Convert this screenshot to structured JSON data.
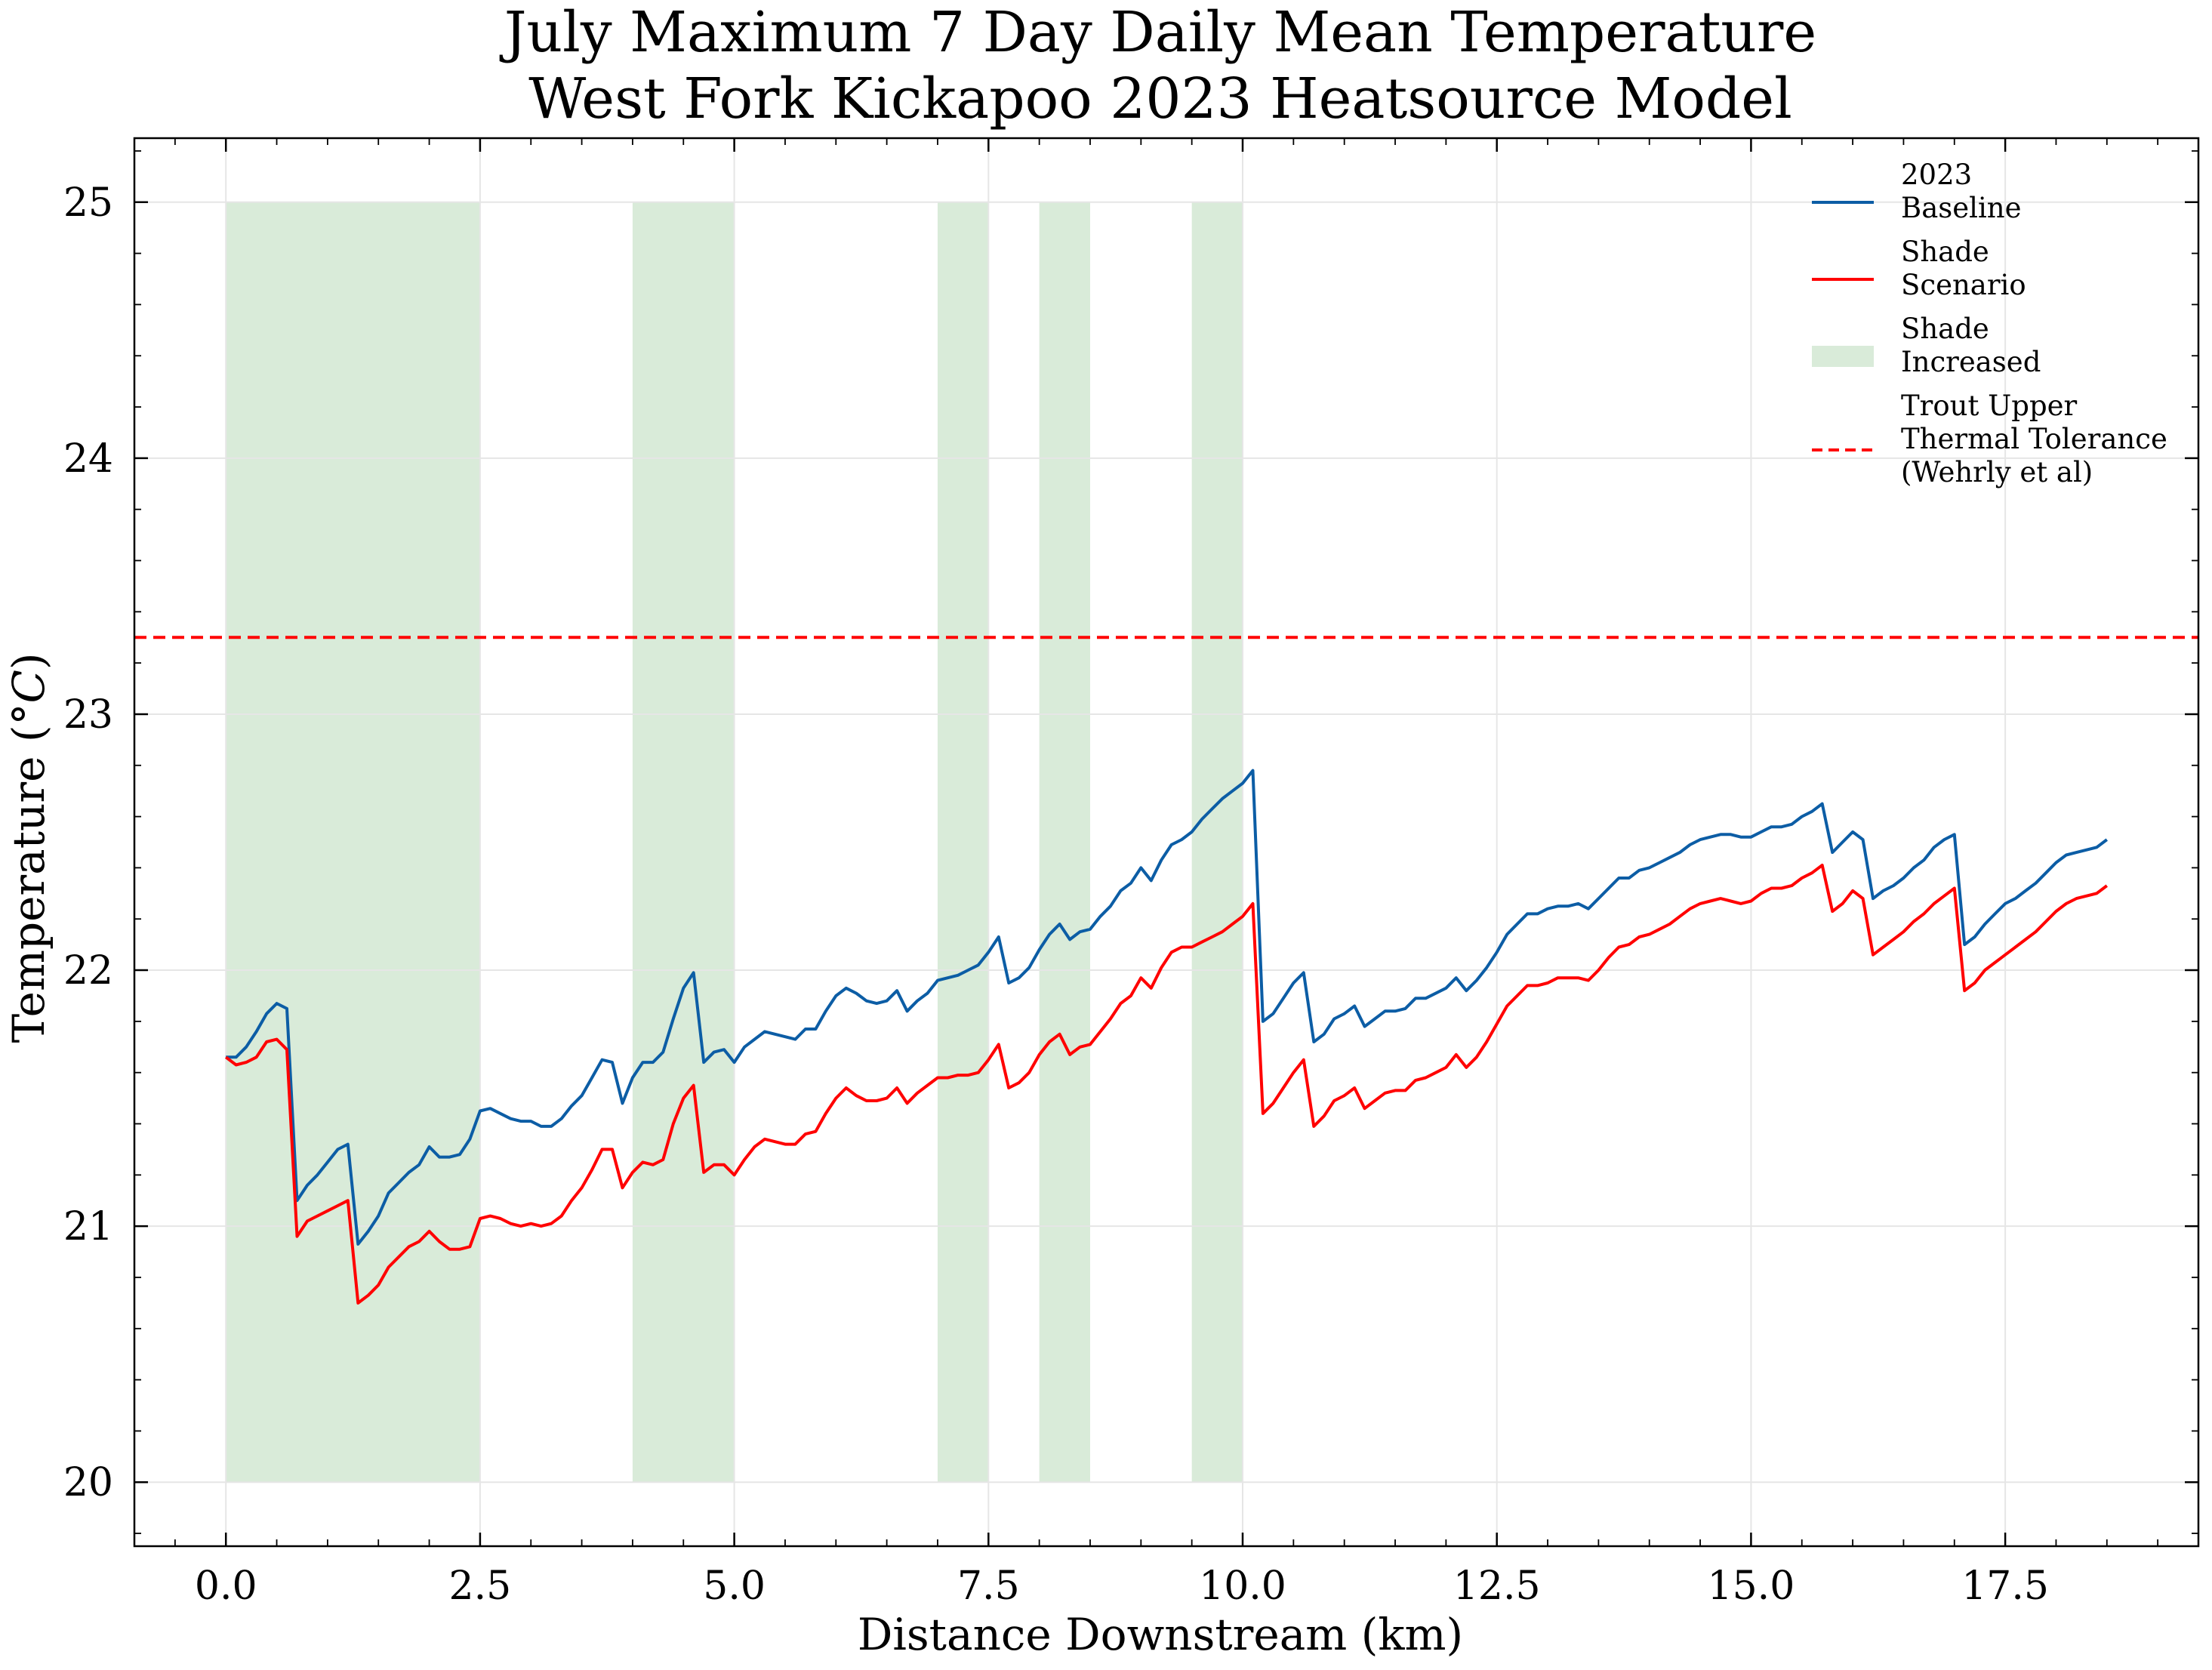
{
  "chart_data": {
    "type": "line",
    "title": [
      "July Maximum 7 Day Daily Mean Temperature",
      "West Fork Kickapoo 2023 Heatsource Model"
    ],
    "xlabel": "Distance Downstream (km)",
    "ylabel_main": "Temperature (",
    "ylabel_unit": "°C",
    "ylabel_close": ")",
    "xlim": [
      -0.9,
      19.4
    ],
    "ylim": [
      19.75,
      25.25
    ],
    "xticks": [
      0,
      2.5,
      5,
      7.5,
      10,
      12.5,
      15,
      17.5
    ],
    "xtick_labels": [
      "0.0",
      "2.5",
      "5.0",
      "7.5",
      "10.0",
      "12.5",
      "15.0",
      "17.5"
    ],
    "yticks": [
      20,
      21,
      22,
      23,
      24,
      25
    ],
    "ytick_labels": [
      "20",
      "21",
      "22",
      "23",
      "24",
      "25"
    ],
    "grid": true,
    "legend_position": "top-right",
    "shade_regions": [
      [
        0,
        2.5
      ],
      [
        4,
        5
      ],
      [
        7,
        7.5
      ],
      [
        8,
        8.5
      ],
      [
        9.5,
        10
      ]
    ],
    "shade_yrange": [
      20,
      25
    ],
    "threshold": 23.3,
    "colors": {
      "baseline": "#0C5DA5",
      "shade": "#FF0000",
      "shade_band": "#d9ebd9",
      "threshold": "#FF0000",
      "grid": "#e6e6e6"
    },
    "legend": [
      {
        "key": "baseline",
        "kind": "line",
        "lines": [
          "2023",
          "Baseline"
        ]
      },
      {
        "key": "shade",
        "kind": "line",
        "lines": [
          "Shade",
          "Scenario"
        ]
      },
      {
        "key": "band",
        "kind": "patch",
        "lines": [
          "Shade",
          "Increased"
        ]
      },
      {
        "key": "threshold",
        "kind": "dashed",
        "lines": [
          "Trout Upper",
          "Thermal Tolerance",
          "(Wehrly et al)"
        ]
      }
    ],
    "series": [
      {
        "key": "baseline",
        "x": [
          0,
          0.1,
          0.2,
          0.3,
          0.4,
          0.5,
          0.6,
          0.7,
          0.8,
          0.9,
          1.0,
          1.1,
          1.2,
          1.3,
          1.4,
          1.5,
          1.6,
          1.7,
          1.8,
          1.9,
          2.0,
          2.1,
          2.2,
          2.3,
          2.4,
          2.5,
          2.6,
          2.7,
          2.8,
          2.9,
          3.0,
          3.1,
          3.2,
          3.3,
          3.4,
          3.5,
          3.6,
          3.7,
          3.8,
          3.9,
          4.0,
          4.1,
          4.2,
          4.3,
          4.4,
          4.5,
          4.6,
          4.7,
          4.8,
          4.9,
          5.0,
          5.1,
          5.2,
          5.3,
          5.4,
          5.5,
          5.6,
          5.7,
          5.8,
          5.9,
          6.0,
          6.1,
          6.2,
          6.3,
          6.4,
          6.5,
          6.6,
          6.7,
          6.8,
          6.9,
          7.0,
          7.1,
          7.2,
          7.3,
          7.4,
          7.5,
          7.6,
          7.7,
          7.8,
          7.9,
          8.0,
          8.1,
          8.2,
          8.3,
          8.4,
          8.5,
          8.6,
          8.7,
          8.8,
          8.9,
          9.0,
          9.1,
          9.2,
          9.3,
          9.4,
          9.5,
          9.6,
          9.7,
          9.8,
          9.9,
          10.0,
          10.1,
          10.2,
          10.3,
          10.4,
          10.5,
          10.6,
          10.7,
          10.8,
          10.9,
          11.0,
          11.1,
          11.2,
          11.3,
          11.4,
          11.5,
          11.6,
          11.7,
          11.8,
          11.9,
          12.0,
          12.1,
          12.2,
          12.3,
          12.4,
          12.5,
          12.6,
          12.7,
          12.8,
          12.9,
          13.0,
          13.1,
          13.2,
          13.3,
          13.4,
          13.5,
          13.6,
          13.7,
          13.8,
          13.9,
          14.0,
          14.1,
          14.2,
          14.3,
          14.4,
          14.5,
          14.6,
          14.7,
          14.8,
          14.9,
          15.0,
          15.1,
          15.2,
          15.3,
          15.4,
          15.5,
          15.6,
          15.7,
          15.8,
          15.9,
          16.0,
          16.1,
          16.2,
          16.3,
          16.4,
          16.5,
          16.6,
          16.7,
          16.8,
          16.9,
          17.0,
          17.1,
          17.2,
          17.3,
          17.4,
          17.5,
          17.6,
          17.7,
          17.8,
          17.9,
          18.0,
          18.1,
          18.2,
          18.3,
          18.4,
          18.5
        ],
        "y": [
          21.66,
          21.66,
          21.7,
          21.76,
          21.83,
          21.87,
          21.85,
          21.1,
          21.16,
          21.2,
          21.25,
          21.3,
          21.32,
          20.93,
          20.98,
          21.04,
          21.13,
          21.17,
          21.21,
          21.24,
          21.31,
          21.27,
          21.27,
          21.28,
          21.34,
          21.45,
          21.46,
          21.44,
          21.42,
          21.41,
          21.41,
          21.39,
          21.39,
          21.42,
          21.47,
          21.51,
          21.58,
          21.65,
          21.64,
          21.48,
          21.58,
          21.64,
          21.64,
          21.68,
          21.81,
          21.93,
          21.99,
          21.64,
          21.68,
          21.69,
          21.64,
          21.7,
          21.73,
          21.76,
          21.75,
          21.74,
          21.73,
          21.77,
          21.77,
          21.84,
          21.9,
          21.93,
          21.91,
          21.88,
          21.87,
          21.88,
          21.92,
          21.84,
          21.88,
          21.91,
          21.96,
          21.97,
          21.98,
          22.0,
          22.02,
          22.07,
          22.13,
          21.95,
          21.97,
          22.01,
          22.08,
          22.14,
          22.18,
          22.12,
          22.15,
          22.16,
          22.21,
          22.25,
          22.31,
          22.34,
          22.4,
          22.35,
          22.43,
          22.49,
          22.51,
          22.54,
          22.59,
          22.63,
          22.67,
          22.7,
          22.73,
          22.78,
          21.8,
          21.83,
          21.89,
          21.95,
          21.99,
          21.72,
          21.75,
          21.81,
          21.83,
          21.86,
          21.78,
          21.81,
          21.84,
          21.84,
          21.85,
          21.89,
          21.89,
          21.91,
          21.93,
          21.97,
          21.92,
          21.96,
          22.01,
          22.07,
          22.14,
          22.18,
          22.22,
          22.22,
          22.24,
          22.25,
          22.25,
          22.26,
          22.24,
          22.28,
          22.32,
          22.36,
          22.36,
          22.39,
          22.4,
          22.42,
          22.44,
          22.46,
          22.49,
          22.51,
          22.52,
          22.53,
          22.53,
          22.52,
          22.52,
          22.54,
          22.56,
          22.56,
          22.57,
          22.6,
          22.62,
          22.65,
          22.46,
          22.5,
          22.54,
          22.51,
          22.28,
          22.31,
          22.33,
          22.36,
          22.4,
          22.43,
          22.48,
          22.51,
          22.53,
          22.1,
          22.13,
          22.18,
          22.22,
          22.26,
          22.28,
          22.31,
          22.34,
          22.38,
          22.42,
          22.45,
          22.46,
          22.47,
          22.48,
          22.51
        ]
      },
      {
        "key": "shade",
        "x": [
          0,
          0.1,
          0.2,
          0.3,
          0.4,
          0.5,
          0.6,
          0.7,
          0.8,
          0.9,
          1.0,
          1.1,
          1.2,
          1.3,
          1.4,
          1.5,
          1.6,
          1.7,
          1.8,
          1.9,
          2.0,
          2.1,
          2.2,
          2.3,
          2.4,
          2.5,
          2.6,
          2.7,
          2.8,
          2.9,
          3.0,
          3.1,
          3.2,
          3.3,
          3.4,
          3.5,
          3.6,
          3.7,
          3.8,
          3.9,
          4.0,
          4.1,
          4.2,
          4.3,
          4.4,
          4.5,
          4.6,
          4.7,
          4.8,
          4.9,
          5.0,
          5.1,
          5.2,
          5.3,
          5.4,
          5.5,
          5.6,
          5.7,
          5.8,
          5.9,
          6.0,
          6.1,
          6.2,
          6.3,
          6.4,
          6.5,
          6.6,
          6.7,
          6.8,
          6.9,
          7.0,
          7.1,
          7.2,
          7.3,
          7.4,
          7.5,
          7.6,
          7.7,
          7.8,
          7.9,
          8.0,
          8.1,
          8.2,
          8.3,
          8.4,
          8.5,
          8.6,
          8.7,
          8.8,
          8.9,
          9.0,
          9.1,
          9.2,
          9.3,
          9.4,
          9.5,
          9.6,
          9.7,
          9.8,
          9.9,
          10.0,
          10.1,
          10.2,
          10.3,
          10.4,
          10.5,
          10.6,
          10.7,
          10.8,
          10.9,
          11.0,
          11.1,
          11.2,
          11.3,
          11.4,
          11.5,
          11.6,
          11.7,
          11.8,
          11.9,
          12.0,
          12.1,
          12.2,
          12.3,
          12.4,
          12.5,
          12.6,
          12.7,
          12.8,
          12.9,
          13.0,
          13.1,
          13.2,
          13.3,
          13.4,
          13.5,
          13.6,
          13.7,
          13.8,
          13.9,
          14.0,
          14.1,
          14.2,
          14.3,
          14.4,
          14.5,
          14.6,
          14.7,
          14.8,
          14.9,
          15.0,
          15.1,
          15.2,
          15.3,
          15.4,
          15.5,
          15.6,
          15.7,
          15.8,
          15.9,
          16.0,
          16.1,
          16.2,
          16.3,
          16.4,
          16.5,
          16.6,
          16.7,
          16.8,
          16.9,
          17.0,
          17.1,
          17.2,
          17.3,
          17.4,
          17.5,
          17.6,
          17.7,
          17.8,
          17.9,
          18.0,
          18.1,
          18.2,
          18.3,
          18.4,
          18.5
        ],
        "y": [
          21.66,
          21.63,
          21.64,
          21.66,
          21.72,
          21.73,
          21.69,
          20.96,
          21.02,
          21.04,
          21.06,
          21.08,
          21.1,
          20.7,
          20.73,
          20.77,
          20.84,
          20.88,
          20.92,
          20.94,
          20.98,
          20.94,
          20.91,
          20.91,
          20.92,
          21.03,
          21.04,
          21.03,
          21.01,
          21.0,
          21.01,
          21.0,
          21.01,
          21.04,
          21.1,
          21.15,
          21.22,
          21.3,
          21.3,
          21.15,
          21.21,
          21.25,
          21.24,
          21.26,
          21.4,
          21.5,
          21.55,
          21.21,
          21.24,
          21.24,
          21.2,
          21.26,
          21.31,
          21.34,
          21.33,
          21.32,
          21.32,
          21.36,
          21.37,
          21.44,
          21.5,
          21.54,
          21.51,
          21.49,
          21.49,
          21.5,
          21.54,
          21.48,
          21.52,
          21.55,
          21.58,
          21.58,
          21.59,
          21.59,
          21.6,
          21.65,
          21.71,
          21.54,
          21.56,
          21.6,
          21.67,
          21.72,
          21.75,
          21.67,
          21.7,
          21.71,
          21.76,
          21.81,
          21.87,
          21.9,
          21.97,
          21.93,
          22.01,
          22.07,
          22.09,
          22.09,
          22.11,
          22.13,
          22.15,
          22.18,
          22.21,
          22.26,
          21.44,
          21.48,
          21.54,
          21.6,
          21.65,
          21.39,
          21.43,
          21.49,
          21.51,
          21.54,
          21.46,
          21.49,
          21.52,
          21.53,
          21.53,
          21.57,
          21.58,
          21.6,
          21.62,
          21.67,
          21.62,
          21.66,
          21.72,
          21.79,
          21.86,
          21.9,
          21.94,
          21.94,
          21.95,
          21.97,
          21.97,
          21.97,
          21.96,
          22.0,
          22.05,
          22.09,
          22.1,
          22.13,
          22.14,
          22.16,
          22.18,
          22.21,
          22.24,
          22.26,
          22.27,
          22.28,
          22.27,
          22.26,
          22.27,
          22.3,
          22.32,
          22.32,
          22.33,
          22.36,
          22.38,
          22.41,
          22.23,
          22.26,
          22.31,
          22.28,
          22.06,
          22.09,
          22.12,
          22.15,
          22.19,
          22.22,
          22.26,
          22.29,
          22.32,
          21.92,
          21.95,
          22.0,
          22.03,
          22.06,
          22.09,
          22.12,
          22.15,
          22.19,
          22.23,
          22.26,
          22.28,
          22.29,
          22.3,
          22.33
        ]
      }
    ]
  }
}
